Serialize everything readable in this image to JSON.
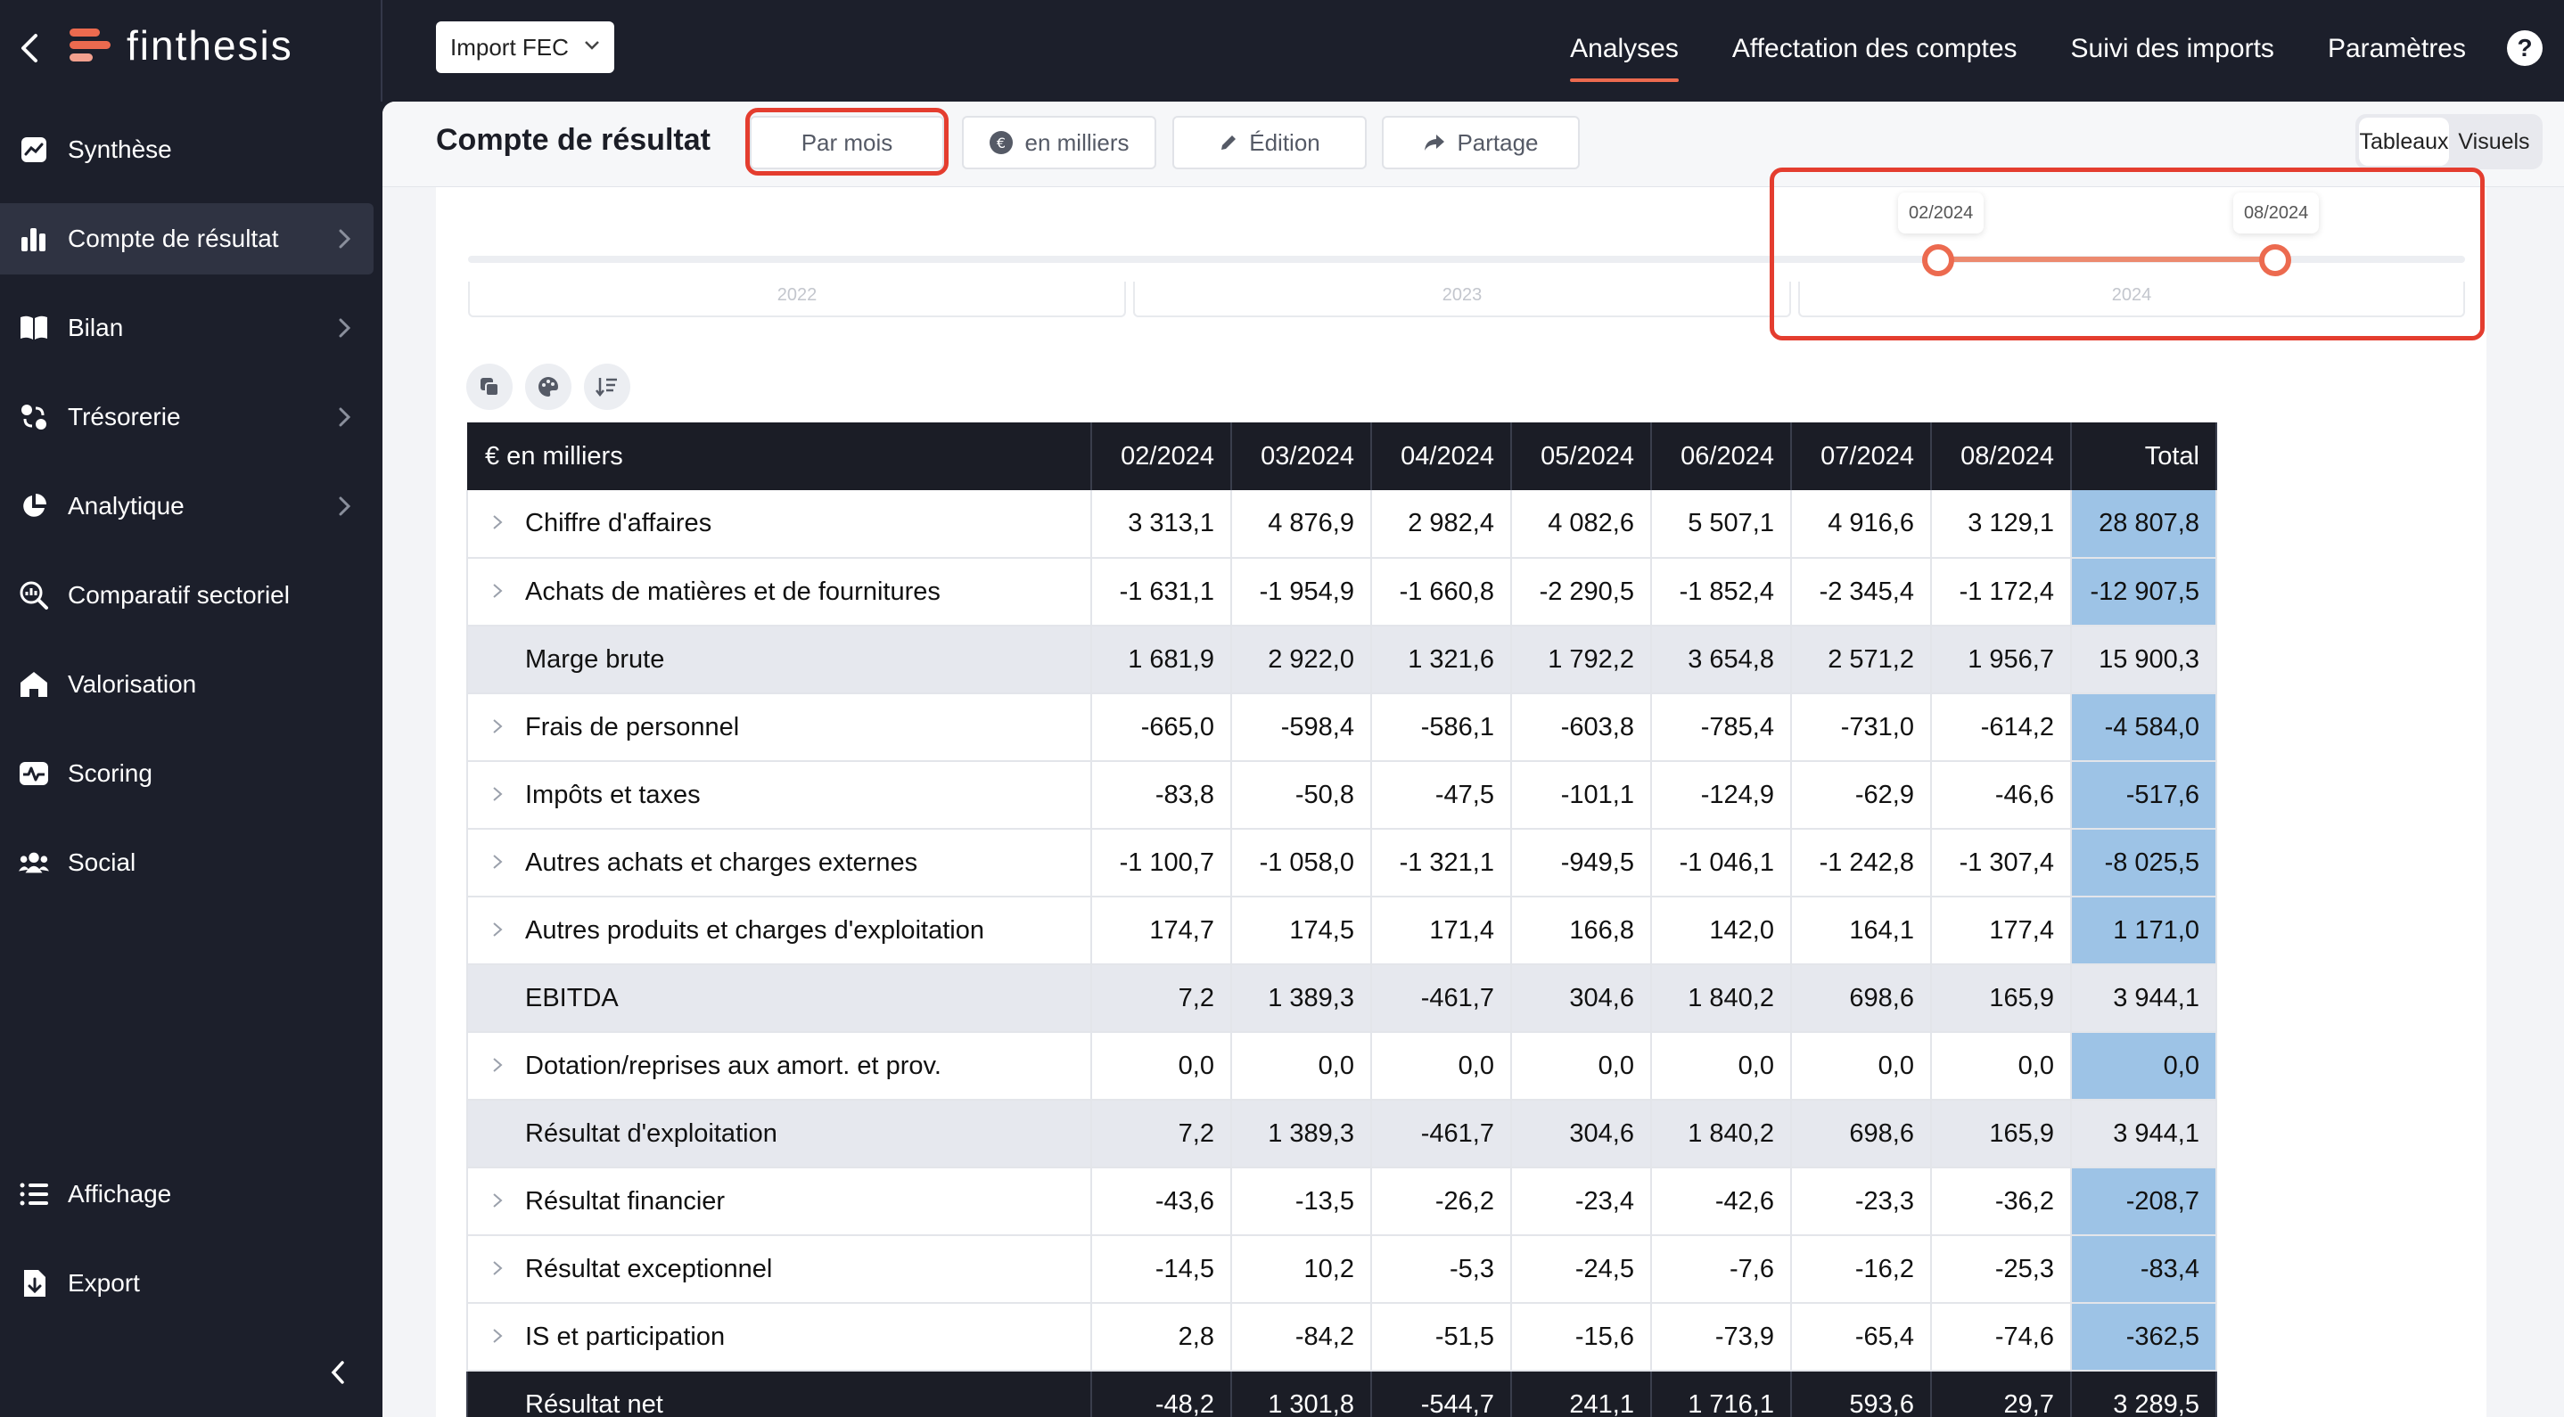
{
  "brand": {
    "name": "finthesis"
  },
  "sidebar": {
    "items": [
      {
        "label": "Synthèse",
        "icon": "chart-line-icon",
        "active": false,
        "has_chevron": false
      },
      {
        "label": "Compte de résultat",
        "icon": "bar-chart-icon",
        "active": true,
        "has_chevron": true
      },
      {
        "label": "Bilan",
        "icon": "book-icon",
        "active": false,
        "has_chevron": true
      },
      {
        "label": "Trésorerie",
        "icon": "cash-flow-icon",
        "active": false,
        "has_chevron": true
      },
      {
        "label": "Analytique",
        "icon": "pie-chart-icon",
        "active": false,
        "has_chevron": true
      },
      {
        "label": "Comparatif sectoriel",
        "icon": "magnify-chart-icon",
        "active": false,
        "has_chevron": false
      },
      {
        "label": "Valorisation",
        "icon": "house-icon",
        "active": false,
        "has_chevron": false
      },
      {
        "label": "Scoring",
        "icon": "pulse-icon",
        "active": false,
        "has_chevron": false
      },
      {
        "label": "Social",
        "icon": "users-icon",
        "active": false,
        "has_chevron": false
      }
    ],
    "bottom": [
      {
        "label": "Affichage",
        "icon": "list-icon"
      },
      {
        "label": "Export",
        "icon": "export-icon"
      }
    ]
  },
  "topbar": {
    "import_select": "Import FEC",
    "tabs": [
      "Analyses",
      "Affectation des comptes",
      "Suivi des imports",
      "Paramètres"
    ],
    "active_tab": "Analyses",
    "help": "?"
  },
  "toolbar": {
    "title": "Compte de résultat",
    "period_button": "Par mois",
    "units_button": "en milliers",
    "edit_button": "Édition",
    "share_button": "Partage",
    "view_options": [
      "Tableaux",
      "Visuels"
    ],
    "active_view": "Tableaux"
  },
  "timeline": {
    "years": [
      "2022",
      "2023",
      "2024"
    ],
    "start_label": "02/2024",
    "end_label": "08/2024"
  },
  "table": {
    "header_label": "€ en milliers",
    "columns": [
      "02/2024",
      "03/2024",
      "04/2024",
      "05/2024",
      "06/2024",
      "07/2024",
      "08/2024"
    ],
    "total_label": "Total",
    "rows": [
      {
        "label": "Chiffre d'affaires",
        "type": "detail",
        "values": [
          "3 313,1",
          "4 876,9",
          "2 982,4",
          "4 082,6",
          "5 507,1",
          "4 916,6",
          "3 129,1"
        ],
        "total": "28 807,8"
      },
      {
        "label": "Achats de matières et de fournitures",
        "type": "detail",
        "values": [
          "-1 631,1",
          "-1 954,9",
          "-1 660,8",
          "-2 290,5",
          "-1 852,4",
          "-2 345,4",
          "-1 172,4"
        ],
        "total": "-12 907,5"
      },
      {
        "label": "Marge brute",
        "type": "subtotal",
        "values": [
          "1 681,9",
          "2 922,0",
          "1 321,6",
          "1 792,2",
          "3 654,8",
          "2 571,2",
          "1 956,7"
        ],
        "total": "15 900,3"
      },
      {
        "label": "Frais de personnel",
        "type": "detail",
        "values": [
          "-665,0",
          "-598,4",
          "-586,1",
          "-603,8",
          "-785,4",
          "-731,0",
          "-614,2"
        ],
        "total": "-4 584,0"
      },
      {
        "label": "Impôts et taxes",
        "type": "detail",
        "values": [
          "-83,8",
          "-50,8",
          "-47,5",
          "-101,1",
          "-124,9",
          "-62,9",
          "-46,6"
        ],
        "total": "-517,6"
      },
      {
        "label": "Autres achats et charges externes",
        "type": "detail",
        "values": [
          "-1 100,7",
          "-1 058,0",
          "-1 321,1",
          "-949,5",
          "-1 046,1",
          "-1 242,8",
          "-1 307,4"
        ],
        "total": "-8 025,5"
      },
      {
        "label": "Autres produits et charges d'exploitation",
        "type": "detail",
        "values": [
          "174,7",
          "174,5",
          "171,4",
          "166,8",
          "142,0",
          "164,1",
          "177,4"
        ],
        "total": "1 171,0"
      },
      {
        "label": "EBITDA",
        "type": "subtotal",
        "values": [
          "7,2",
          "1 389,3",
          "-461,7",
          "304,6",
          "1 840,2",
          "698,6",
          "165,9"
        ],
        "total": "3 944,1"
      },
      {
        "label": "Dotation/reprises aux amort. et prov.",
        "type": "detail",
        "values": [
          "0,0",
          "0,0",
          "0,0",
          "0,0",
          "0,0",
          "0,0",
          "0,0"
        ],
        "total": "0,0"
      },
      {
        "label": "Résultat d'exploitation",
        "type": "subtotal",
        "values": [
          "7,2",
          "1 389,3",
          "-461,7",
          "304,6",
          "1 840,2",
          "698,6",
          "165,9"
        ],
        "total": "3 944,1"
      },
      {
        "label": "Résultat financier",
        "type": "detail",
        "values": [
          "-43,6",
          "-13,5",
          "-26,2",
          "-23,4",
          "-42,6",
          "-23,3",
          "-36,2"
        ],
        "total": "-208,7"
      },
      {
        "label": "Résultat exceptionnel",
        "type": "detail",
        "values": [
          "-14,5",
          "10,2",
          "-5,3",
          "-24,5",
          "-7,6",
          "-16,2",
          "-25,3"
        ],
        "total": "-83,4"
      },
      {
        "label": "IS et participation",
        "type": "detail",
        "values": [
          "2,8",
          "-84,2",
          "-51,5",
          "-15,6",
          "-73,9",
          "-65,4",
          "-74,6"
        ],
        "total": "-362,5"
      },
      {
        "label": "Résultat net",
        "type": "net",
        "values": [
          "-48,2",
          "1 301,8",
          "-544,7",
          "241,1",
          "1 716,1",
          "593,6",
          "29,7"
        ],
        "total": "3 289,5"
      }
    ]
  },
  "colors": {
    "accent": "#ec6a4f",
    "highlight": "#e43d2f",
    "total_cell": "#9dc3e6",
    "sidebar_bg": "#1c1f2b"
  }
}
